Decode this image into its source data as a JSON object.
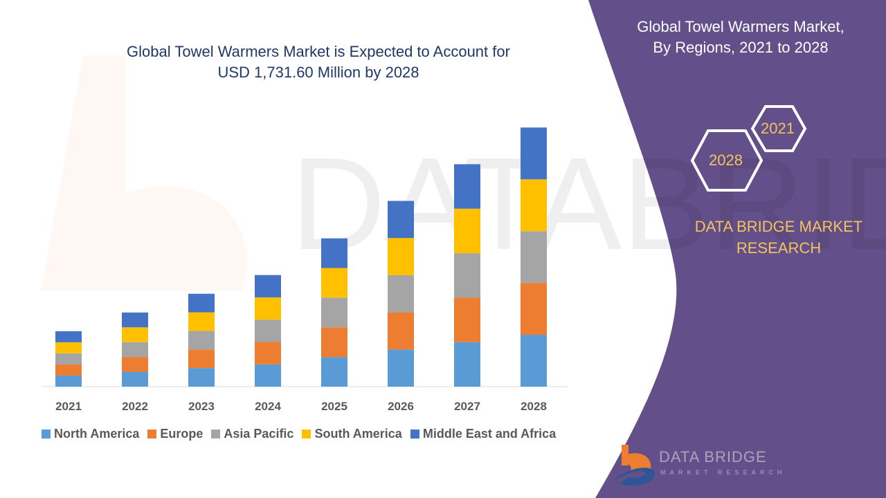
{
  "header": {
    "title_line1": "Global Towel Warmers Market is Expected to Account for",
    "title_line2": "USD 1,731.60 Million by 2028"
  },
  "side_panel": {
    "title_line1": "Global Towel Warmers Market,",
    "title_line2": "By Regions, 2021 to 2028",
    "hex_start": "2021",
    "hex_end": "2028",
    "brand_line1": "DATA BRIDGE MARKET",
    "brand_line2": "RESEARCH",
    "logo_text": "DATA BRIDGE",
    "logo_sub": "MARKET RESEARCH",
    "panel_color": "#634f8a",
    "accent_color": "#f4c35a"
  },
  "chart_data": {
    "type": "bar",
    "stacked": true,
    "title": "",
    "xlabel": "",
    "ylabel": "",
    "grid": false,
    "legend_placement": "bottom",
    "categories": [
      "2021",
      "2022",
      "2023",
      "2024",
      "2025",
      "2026",
      "2027",
      "2028"
    ],
    "series": [
      {
        "name": "North America",
        "color": "#5b9bd5",
        "values": [
          74,
          99,
          124,
          149,
          198,
          248,
          297,
          346
        ]
      },
      {
        "name": "Europe",
        "color": "#ed7d31",
        "values": [
          74,
          99,
          124,
          149,
          198,
          248,
          297,
          346
        ]
      },
      {
        "name": "Asia Pacific",
        "color": "#a5a5a5",
        "values": [
          74,
          99,
          124,
          149,
          198,
          248,
          297,
          346
        ]
      },
      {
        "name": "South America",
        "color": "#ffc000",
        "values": [
          74,
          99,
          124,
          149,
          198,
          248,
          297,
          346
        ]
      },
      {
        "name": "Middle East and Africa",
        "color": "#4472c4",
        "values": [
          74,
          99,
          124,
          149,
          198,
          248,
          297,
          346
        ]
      }
    ],
    "ylim": [
      0,
      1731.6
    ]
  }
}
